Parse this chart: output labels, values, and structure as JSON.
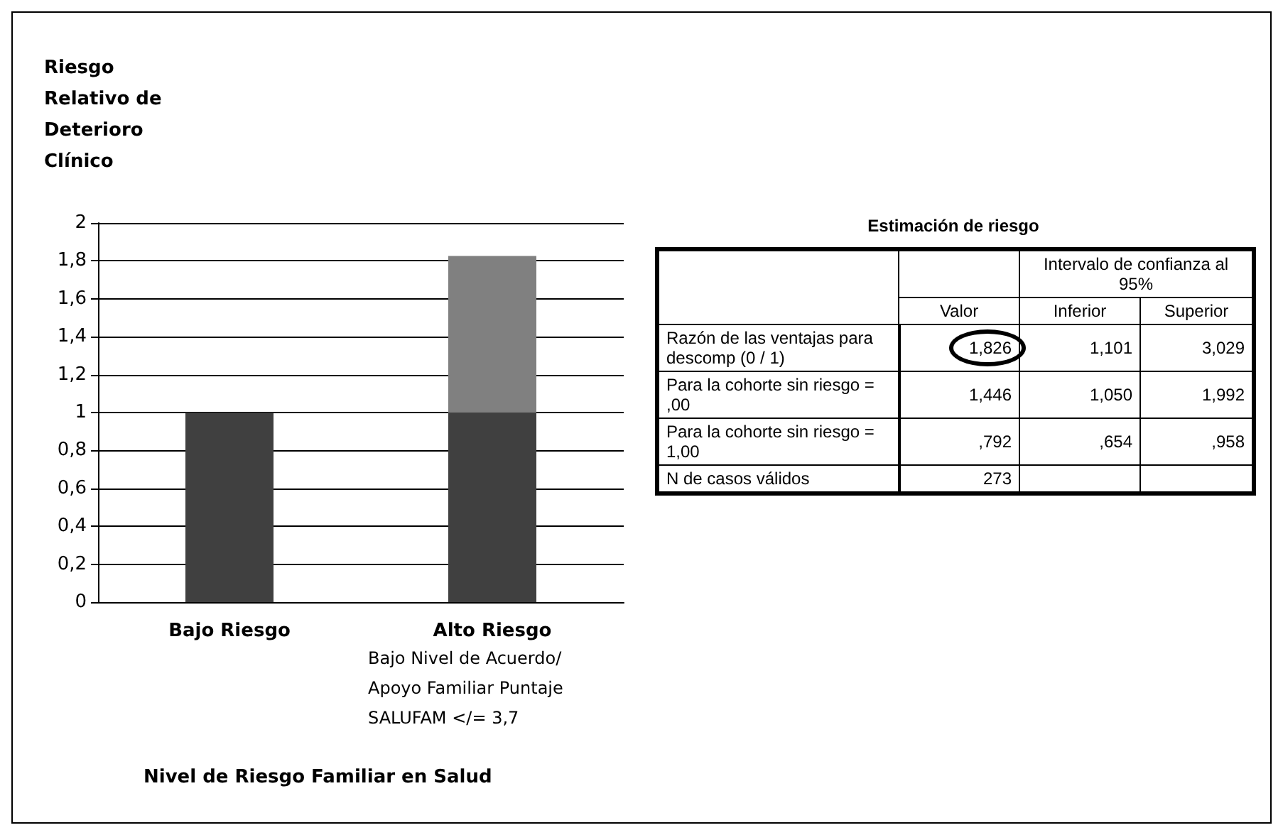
{
  "chart_data": [
    {
      "type": "bar",
      "stacked": true,
      "ylabel": "Riesgo Relativo de Deterioro Clínico",
      "xlabel": "Nivel de Riesgo Familiar en Salud",
      "categories": [
        "Bajo Riesgo",
        "Alto Riesgo"
      ],
      "series": [
        {
          "color": "#404040",
          "values": [
            1,
            1
          ]
        },
        {
          "color": "#808080",
          "values": [
            null,
            0.826
          ]
        }
      ],
      "ylim": [
        0,
        2
      ],
      "yticks": [
        0,
        {
          "value": 0.2,
          "label": "0,2"
        },
        {
          "value": 0.4,
          "label": "0,4"
        },
        {
          "value": 0.6,
          "label": "0,6"
        },
        {
          "value": 0.8,
          "label": "0,8"
        },
        1,
        {
          "value": 1.2,
          "label": "1,2"
        },
        {
          "value": 1.4,
          "label": "1,4"
        },
        {
          "value": 1.6,
          "label": "1,6"
        },
        {
          "value": 1.8,
          "label": "1,8"
        },
        2
      ],
      "grid": "y",
      "annotations": [
        "Bajo Nivel de Acuerdo/Apoyo Familiar Puntaje SALUFAM </= 3,7"
      ]
    },
    {
      "type": "other",
      "title": "Estimación de riesgo",
      "annotations": [
        "Intervalo de confianza al 95%",
        "Valor",
        "Inferior",
        "Superior",
        "Razón de las ventajas para descomp (0 / 1)",
        "1,826",
        "1,101",
        "3,029",
        "Para la cohorte sin riesgo = ,00",
        "1,446",
        "1,050",
        "1,992",
        "Para la cohorte sin riesgo = 1,00",
        ",792",
        ",654",
        ",958",
        "N de casos válidos",
        "273"
      ]
    }
  ]
}
